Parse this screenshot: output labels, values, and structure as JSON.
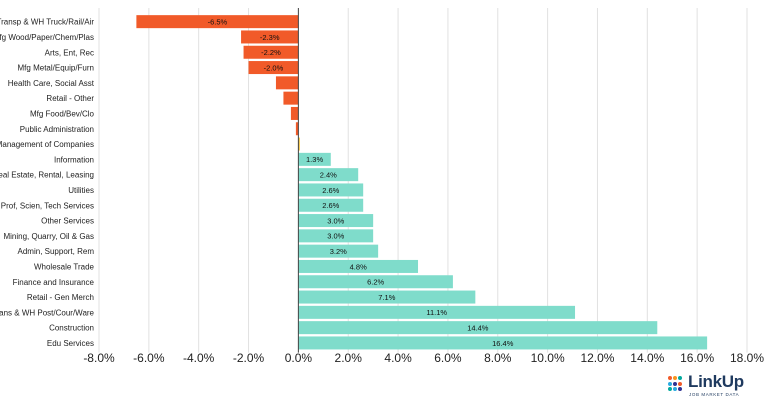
{
  "chart_data": {
    "type": "bar",
    "orientation": "horizontal",
    "categories": [
      "Transp & WH Truck/Rail/Air",
      "Mfg Wood/Paper/Chem/Plas",
      "Arts, Ent, Rec",
      "Mfg Metal/Equip/Furn",
      "Health Care, Social Asst",
      "Retail - Other",
      "Mfg Food/Bev/Clo",
      "Public Administration",
      "Management of Companies",
      "Information",
      "Real Estate, Rental, Leasing",
      "Utilities",
      "Prof, Scien, Tech Services",
      "Other Services",
      "Mining, Quarry, Oil & Gas",
      "Admin, Support, Rem",
      "Wholesale Trade",
      "Finance and Insurance",
      "Retail - Gen Merch",
      "Trans & WH Post/Cour/Ware",
      "Construction",
      "Edu Services"
    ],
    "values": [
      -6.5,
      -2.3,
      -2.2,
      -2.0,
      -0.9,
      -0.6,
      -0.3,
      -0.1,
      0.0,
      1.3,
      2.4,
      2.6,
      2.6,
      3.0,
      3.0,
      3.2,
      4.8,
      6.2,
      7.1,
      11.1,
      14.4,
      16.4
    ],
    "data_labels": [
      "-6.5%",
      "-2.3%",
      "-2.2%",
      "-2.0%",
      "",
      "",
      "",
      "",
      "",
      "1.3%",
      "2.4%",
      "2.6%",
      "2.6%",
      "3.0%",
      "3.0%",
      "3.2%",
      "4.8%",
      "6.2%",
      "7.1%",
      "11.1%",
      "14.4%",
      "16.4%"
    ],
    "xlim": [
      -8,
      18
    ],
    "xticks": [
      -8,
      -6,
      -4,
      -2,
      0,
      2,
      4,
      6,
      8,
      10,
      12,
      14,
      16,
      18
    ],
    "xtick_labels": [
      "-8.0%",
      "-6.0%",
      "-4.0%",
      "-2.0%",
      "0.0%",
      "2.0%",
      "4.0%",
      "6.0%",
      "8.0%",
      "10.0%",
      "12.0%",
      "14.0%",
      "16.0%",
      "18.0%"
    ],
    "grid": "vertical",
    "colors": {
      "negative": "#f15a29",
      "positive": "#7fdccb",
      "zero": "#f7c948"
    }
  },
  "logo": {
    "name": "LinkUp",
    "tagline": "JOB MARKET DATA",
    "dot_colors": [
      "#f15a29",
      "#f7941d",
      "#00a99d",
      "#29abe2",
      "#2e3192",
      "#f15a29",
      "#00a99d",
      "#29abe2",
      "#2e3192"
    ]
  }
}
